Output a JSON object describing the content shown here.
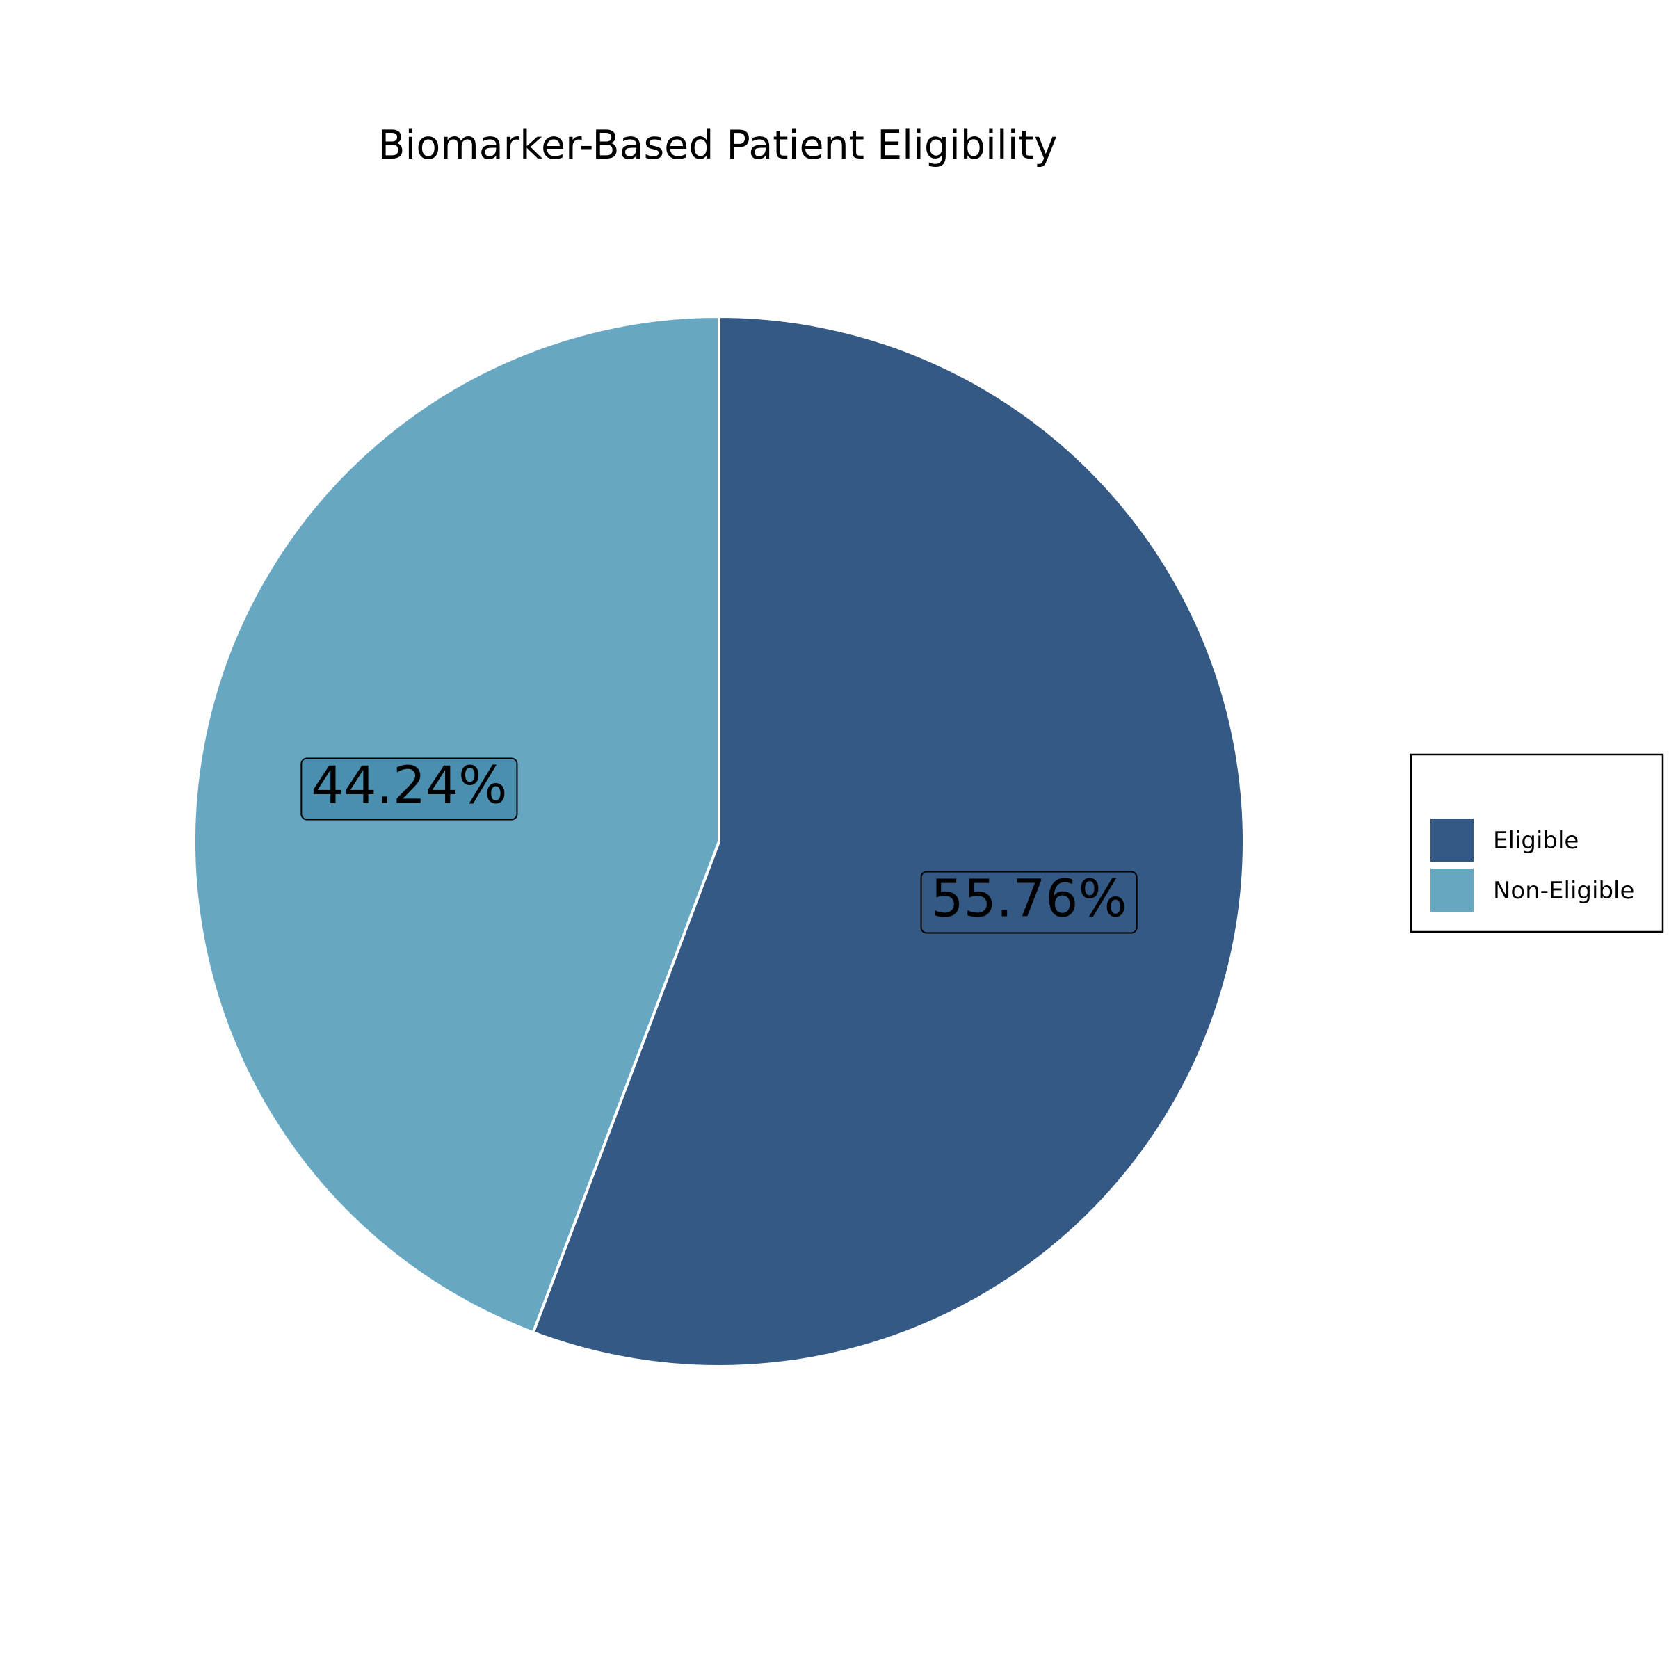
{
  "chart_data": {
    "type": "pie",
    "title": "Biomarker-Based Patient Eligibility",
    "slices": [
      {
        "label": "Eligible",
        "value": 55.76,
        "display": "55.76%",
        "color": "#335984"
      },
      {
        "label": "Non-Eligible",
        "value": 44.24,
        "display": "44.24%",
        "color": "#67a7c2",
        "label_bg": "#4a8fb0"
      }
    ],
    "legend_placement": "right",
    "start_angle_deg": 90,
    "direction": "clockwise"
  }
}
